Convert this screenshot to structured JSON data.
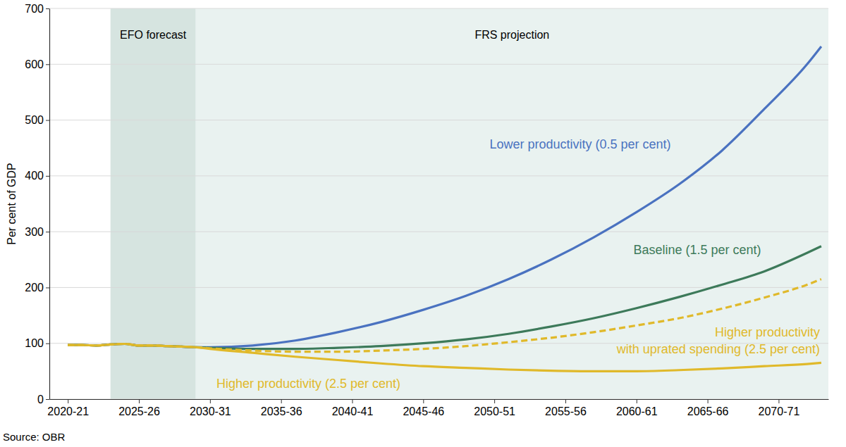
{
  "chart_data": {
    "type": "line",
    "y_label": "Per cent of GDP",
    "source": "Source: OBR",
    "x": [
      2020,
      2021,
      2022,
      2023,
      2024,
      2025,
      2026,
      2027,
      2028,
      2029,
      2030,
      2033,
      2036,
      2039,
      2042,
      2045,
      2048,
      2051,
      2054,
      2057,
      2060,
      2063,
      2066,
      2069,
      2072,
      2073
    ],
    "xlim": [
      2018.7,
      2073.5
    ],
    "xticks": [
      {
        "value": 2020,
        "label": "2020-21"
      },
      {
        "value": 2025,
        "label": "2025-26"
      },
      {
        "value": 2030,
        "label": "2030-31"
      },
      {
        "value": 2035,
        "label": "2035-36"
      },
      {
        "value": 2040,
        "label": "2040-41"
      },
      {
        "value": 2045,
        "label": "2045-46"
      },
      {
        "value": 2050,
        "label": "2050-51"
      },
      {
        "value": 2055,
        "label": "2055-56"
      },
      {
        "value": 2060,
        "label": "2060-61"
      },
      {
        "value": 2065,
        "label": "2065-66"
      },
      {
        "value": 2070,
        "label": "2070-71"
      }
    ],
    "ylim": [
      0,
      700
    ],
    "yticks": [
      0,
      100,
      200,
      300,
      400,
      500,
      600,
      700
    ],
    "grid": true,
    "shaded_regions": [
      {
        "label": "EFO forecast",
        "start": 2023,
        "end": 2029,
        "color": "#d6e4e0"
      },
      {
        "label": "FRS projection",
        "start": 2029,
        "end": 2073.5,
        "color": "#e9f2f0"
      }
    ],
    "series": [
      {
        "name": "Lower productivity (0.5 per cent)",
        "color": "#4a72c0",
        "line_style": "solid",
        "values": [
          97,
          97,
          96,
          98,
          99,
          96,
          96,
          95,
          94,
          93,
          93,
          96,
          105,
          120,
          138,
          160,
          185,
          215,
          250,
          290,
          335,
          385,
          445,
          520,
          600,
          632
        ]
      },
      {
        "name": "Baseline (1.5 per cent)",
        "color": "#3d7a5a",
        "line_style": "solid",
        "values": [
          97,
          97,
          96,
          98,
          99,
          96,
          96,
          95,
          94,
          93,
          92,
          90,
          90,
          92,
          95,
          100,
          107,
          117,
          130,
          145,
          163,
          183,
          205,
          229,
          262,
          274
        ]
      },
      {
        "name": "Higher productivity with uprated spending (2.5 per cent)",
        "color": "#e0b92a",
        "line_style": "dashed",
        "values": [
          97,
          97,
          96,
          98,
          99,
          96,
          96,
          95,
          94,
          93,
          91,
          87,
          85,
          85,
          87,
          90,
          95,
          102,
          110,
          120,
          132,
          145,
          162,
          182,
          205,
          215
        ]
      },
      {
        "name": "Higher productivity (2.5 per cent)",
        "color": "#e0b92a",
        "line_style": "solid",
        "values": [
          97,
          97,
          96,
          98,
          99,
          96,
          96,
          95,
          94,
          93,
          90,
          83,
          76,
          70,
          64,
          59,
          56,
          53,
          51,
          50,
          50,
          52,
          55,
          59,
          63,
          65
        ]
      }
    ]
  }
}
